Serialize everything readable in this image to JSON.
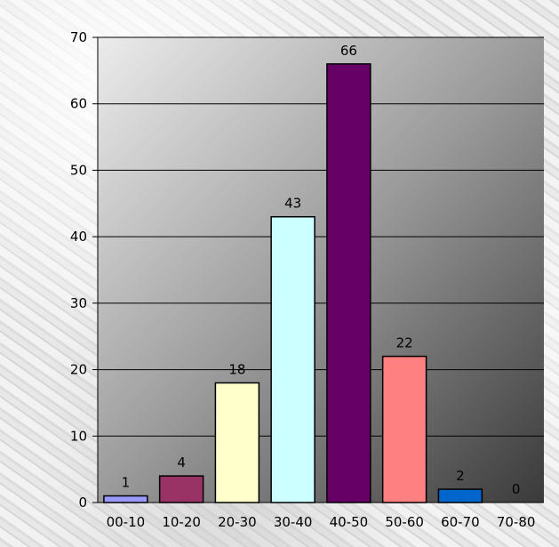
{
  "chart_data": {
    "type": "bar",
    "title": "",
    "xlabel": "",
    "ylabel": "",
    "categories": [
      "00-10",
      "10-20",
      "20-30",
      "30-40",
      "40-50",
      "50-60",
      "60-70",
      "70-80"
    ],
    "values": [
      1,
      4,
      18,
      43,
      66,
      22,
      2,
      0
    ],
    "colors": [
      "#9999ff",
      "#993366",
      "#ffffcc",
      "#ccffff",
      "#660066",
      "#ff8080",
      "#0066cc",
      "#c0c0c0"
    ],
    "ylim": [
      0,
      70
    ],
    "yticks": [
      0,
      10,
      20,
      30,
      40,
      50,
      60,
      70
    ],
    "data_labels": true,
    "grid": true,
    "legend": "none",
    "plot_background": "gradient light-gray to dark-gray"
  }
}
